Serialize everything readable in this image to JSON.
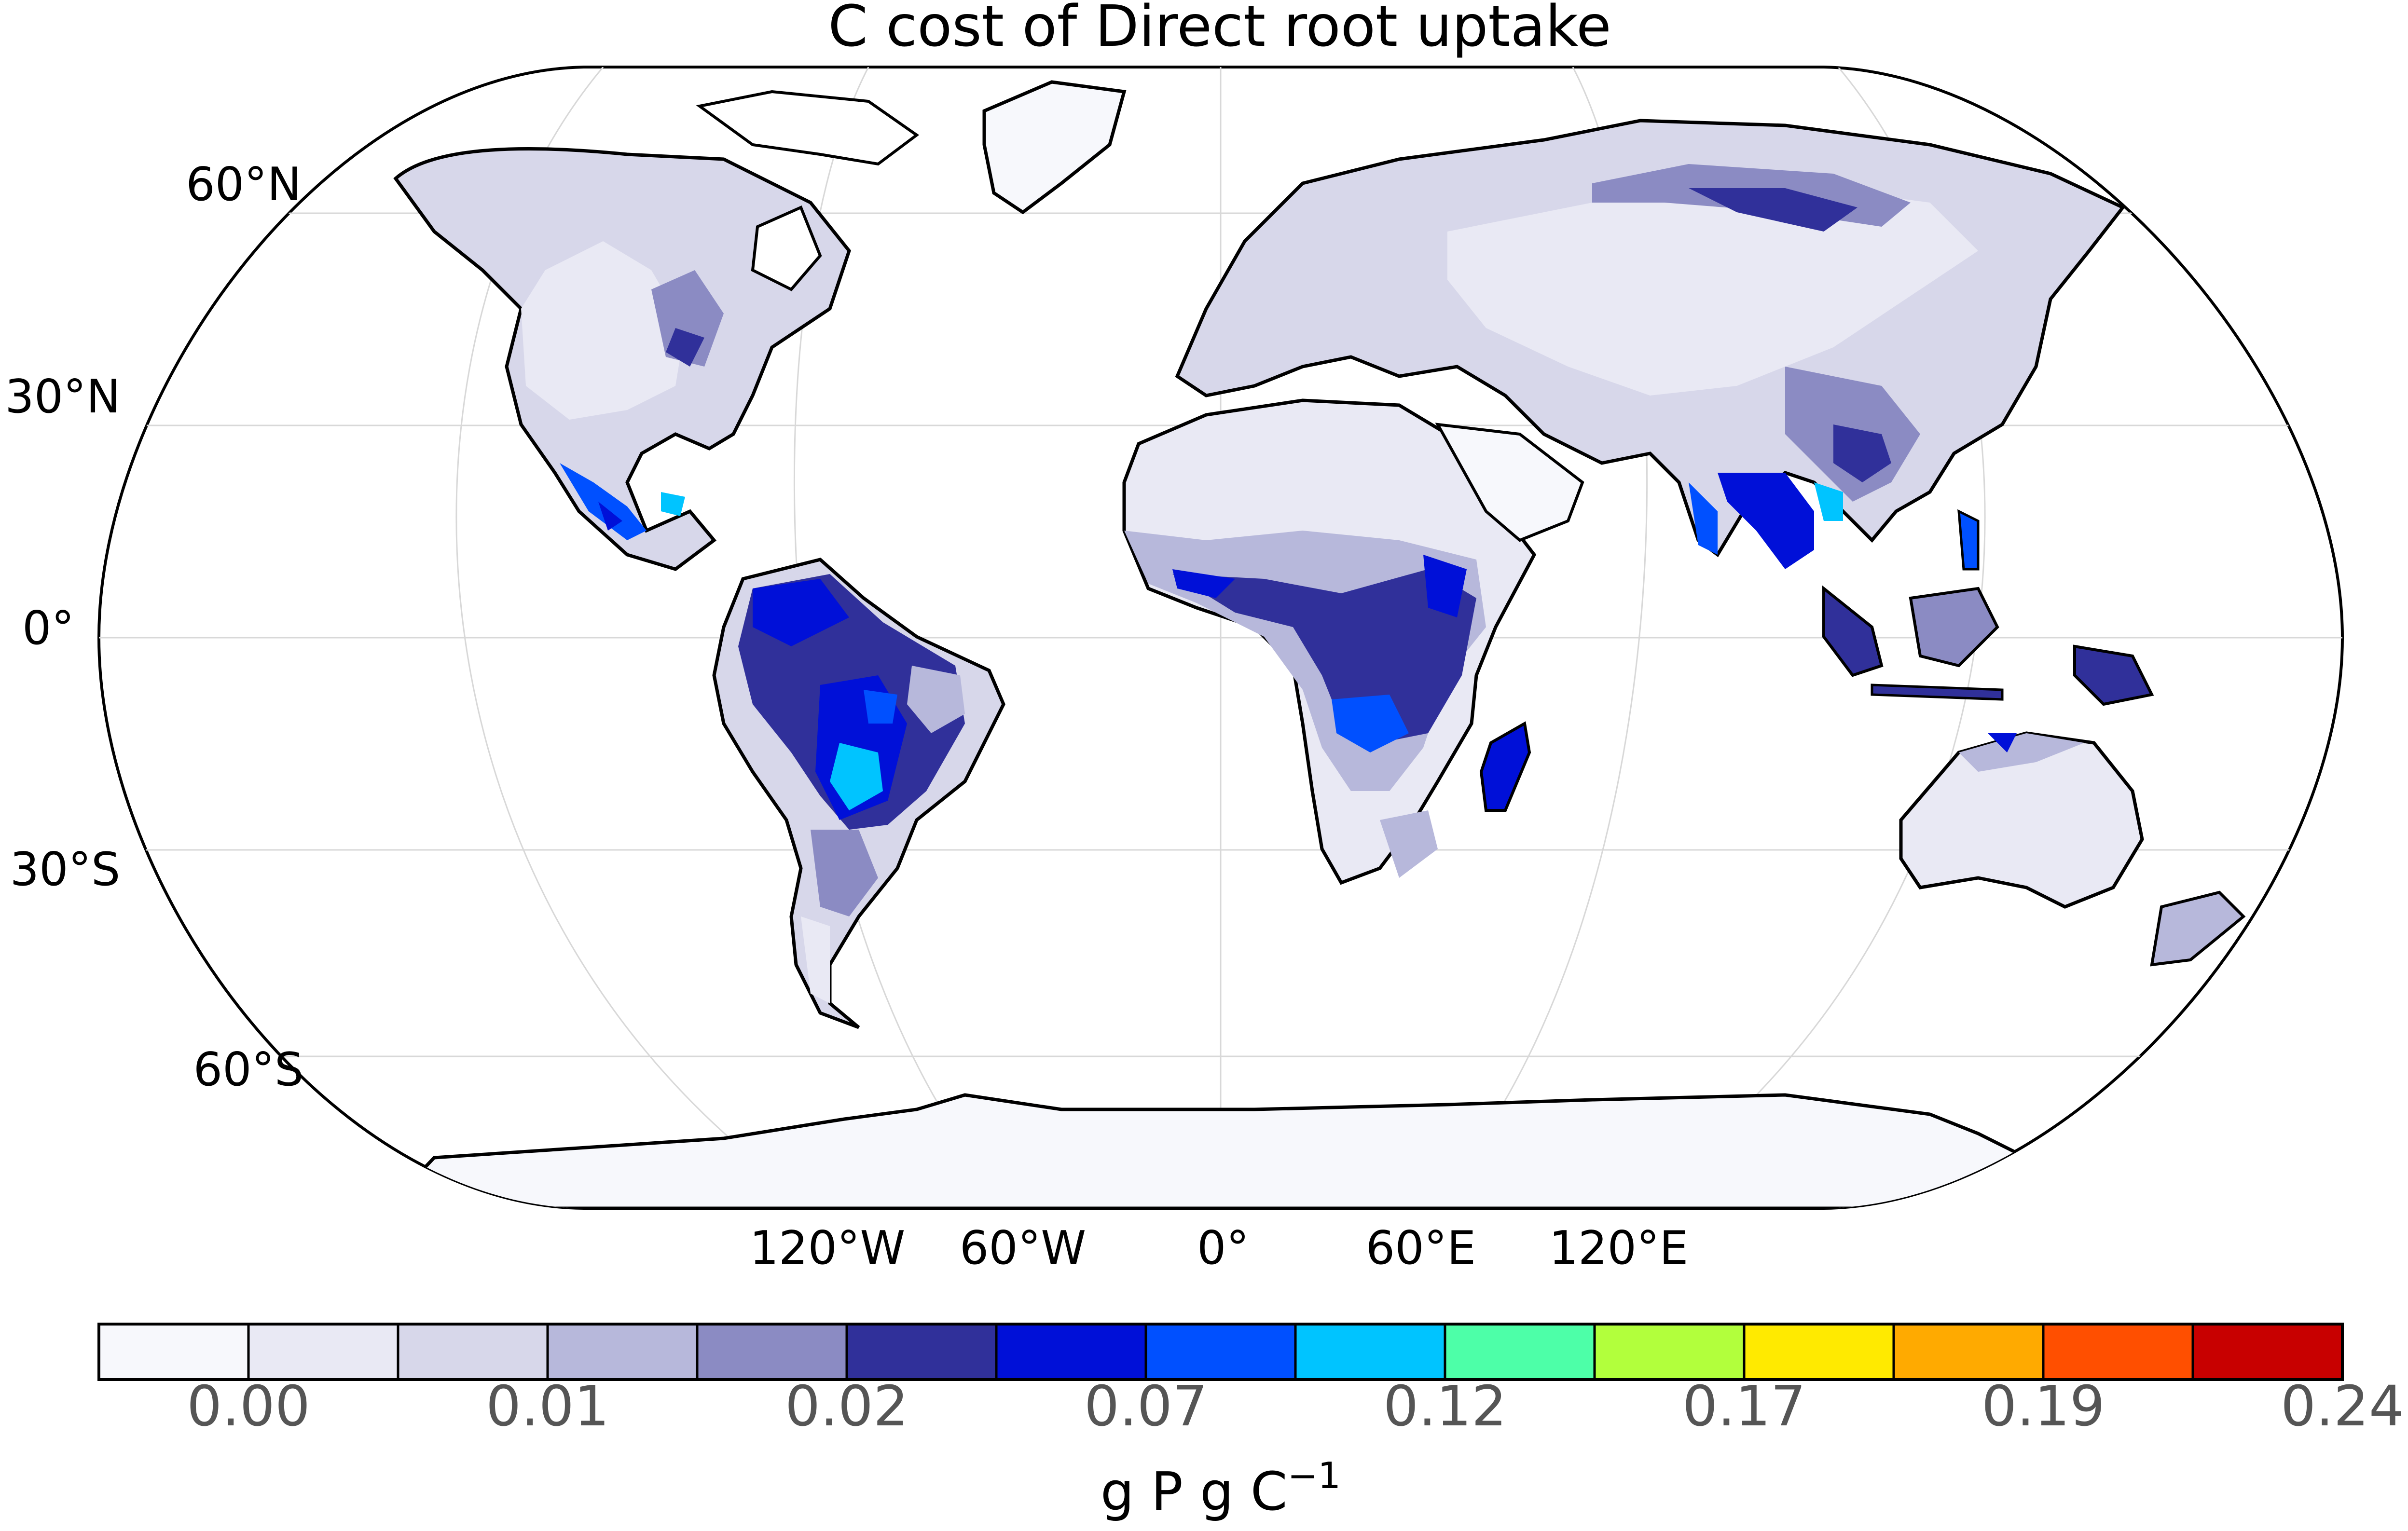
{
  "title": "C cost of Direct root uptake",
  "lat_labels": [
    "60°N",
    "30°N",
    "0°",
    "30°S",
    "60°S"
  ],
  "lon_labels": [
    "120°W",
    "60°W",
    "0°",
    "60°E",
    "120°E"
  ],
  "colorbar": {
    "colors": [
      "#f7f8fc",
      "#e9e9f4",
      "#d7d7ea",
      "#b7b8db",
      "#8b8bc3",
      "#30309a",
      "#0010d8",
      "#0050ff",
      "#00c4ff",
      "#4dffa8",
      "#b2ff3c",
      "#ffea00",
      "#ffaa00",
      "#ff4f00",
      "#c80000"
    ],
    "tick_labels": [
      "0.00",
      "0.01",
      "0.02",
      "0.07",
      "0.12",
      "0.17",
      "0.19",
      "0.24"
    ],
    "unit_label": "g P g C",
    "unit_exponent": "−1"
  },
  "land_color": "#e9e9f4",
  "ocean_color": "#ffffff"
}
